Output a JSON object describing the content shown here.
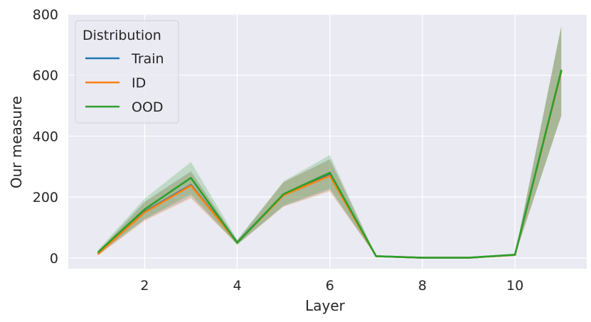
{
  "chart_data": {
    "type": "line",
    "xlabel": "Layer",
    "ylabel": "Our measure",
    "xlim": [
      0.35,
      11.55
    ],
    "ylim": [
      -35,
      800
    ],
    "xticks": [
      2,
      4,
      6,
      8,
      10
    ],
    "yticks": [
      0,
      200,
      400,
      600,
      800
    ],
    "grid": true,
    "legend": {
      "title": "Distribution",
      "position": "top-left"
    },
    "x": [
      1,
      2,
      3,
      4,
      5,
      6,
      7,
      8,
      9,
      10,
      11
    ],
    "series": [
      {
        "name": "Train",
        "color": "#1f77b4",
        "values": [
          15,
          152,
          240,
          52,
          208,
          275,
          6,
          1,
          1,
          10,
          613
        ],
        "lower": [
          10,
          125,
          200,
          45,
          170,
          222,
          5,
          0,
          0,
          8,
          468
        ],
        "upper": [
          22,
          185,
          285,
          58,
          248,
          325,
          7,
          2,
          2,
          12,
          760
        ]
      },
      {
        "name": "ID",
        "color": "#ff7f0e",
        "values": [
          14,
          150,
          238,
          51,
          206,
          270,
          6,
          1,
          1,
          10,
          612
        ],
        "lower": [
          9,
          122,
          195,
          44,
          168,
          218,
          5,
          0,
          0,
          8,
          467
        ],
        "upper": [
          21,
          183,
          283,
          57,
          250,
          322,
          7,
          2,
          2,
          12,
          759
        ]
      },
      {
        "name": "OOD",
        "color": "#2ca02c",
        "values": [
          20,
          160,
          263,
          50,
          210,
          280,
          6,
          1,
          1,
          11,
          615
        ],
        "lower": [
          14,
          128,
          210,
          43,
          172,
          228,
          5,
          0,
          0,
          9,
          466
        ],
        "upper": [
          28,
          195,
          315,
          60,
          252,
          338,
          7,
          2,
          2,
          13,
          762
        ]
      }
    ]
  }
}
